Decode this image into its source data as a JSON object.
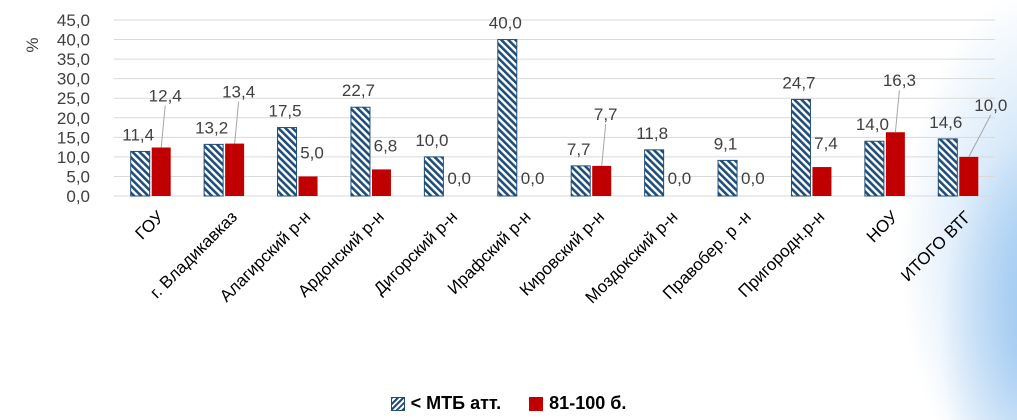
{
  "chart_data": {
    "type": "bar",
    "ylabel": "%",
    "ylim": [
      0,
      45
    ],
    "ytick_step": 5,
    "yticks": [
      "0,0",
      "5,0",
      "10,0",
      "15,0",
      "20,0",
      "25,0",
      "30,0",
      "35,0",
      "40,0",
      "45,0"
    ],
    "grid": true,
    "legend_position": "bottom",
    "categories": [
      "ГОУ",
      "г. Владикавказ",
      "Алагирский р-н",
      "Ардонский р-н",
      "Дигорский р-н",
      "Ирафский р-н",
      "Кировский р-н",
      "Моздокский р-н",
      "Правобер. р -н",
      "Пригородн.р-н",
      "НОУ",
      "ИТОГО ВТГ"
    ],
    "series": [
      {
        "name": "< МТБ атт.",
        "color": "#1f4e79",
        "pattern": "hatch",
        "values": [
          11.4,
          13.2,
          17.5,
          22.7,
          10.0,
          40.0,
          7.7,
          11.8,
          9.1,
          24.7,
          14.0,
          14.6
        ],
        "labels": [
          "11,4",
          "13,2",
          "17,5",
          "22,7",
          "10,0",
          "40,0",
          "7,7",
          "11,8",
          "9,1",
          "24,7",
          "14,0",
          "14,6"
        ]
      },
      {
        "name": "81-100 б.",
        "color": "#c00000",
        "pattern": "solid",
        "values": [
          12.4,
          13.4,
          5.0,
          6.8,
          0.0,
          0.0,
          7.7,
          0.0,
          0.0,
          7.4,
          16.3,
          10.0
        ],
        "labels": [
          "12,4",
          "13,4",
          "5,0",
          "6,8",
          "0,0",
          "0,0",
          "7,7",
          "0,0",
          "0,0",
          "7,4",
          "16,3",
          "10,0"
        ]
      }
    ]
  }
}
